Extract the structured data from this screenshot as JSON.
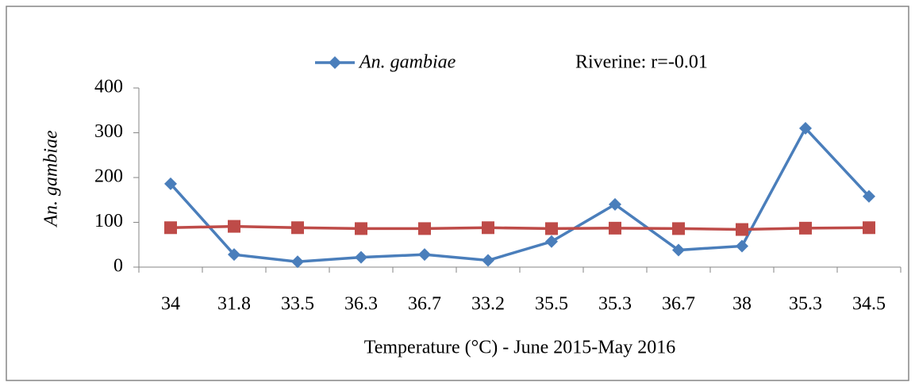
{
  "chart_data": {
    "type": "line",
    "annotation": "Riverine: r=-0.01",
    "y_label": "An. gambiae",
    "x_label": "Temperature  (°C) - June 2015-May 2016",
    "categories": [
      "34",
      "31.8",
      "33.5",
      "36.3",
      "36.7",
      "33.2",
      "35.5",
      "35.3",
      "36.7",
      "38",
      "35.3",
      "34.5"
    ],
    "series": [
      {
        "name": "An. gambiae",
        "color": "#4a7ebb",
        "marker": "diamond",
        "values": [
          186,
          28,
          12,
          22,
          28,
          15,
          57,
          140,
          38,
          47,
          310,
          158
        ]
      },
      {
        "color": "#be4b48",
        "marker": "square",
        "values": [
          88,
          91,
          88,
          86,
          86,
          88,
          86,
          87,
          86,
          84,
          87,
          88
        ]
      }
    ],
    "ylim": [
      0,
      400
    ],
    "yticks": [
      0,
      100,
      200,
      300,
      400
    ],
    "grid": false
  }
}
